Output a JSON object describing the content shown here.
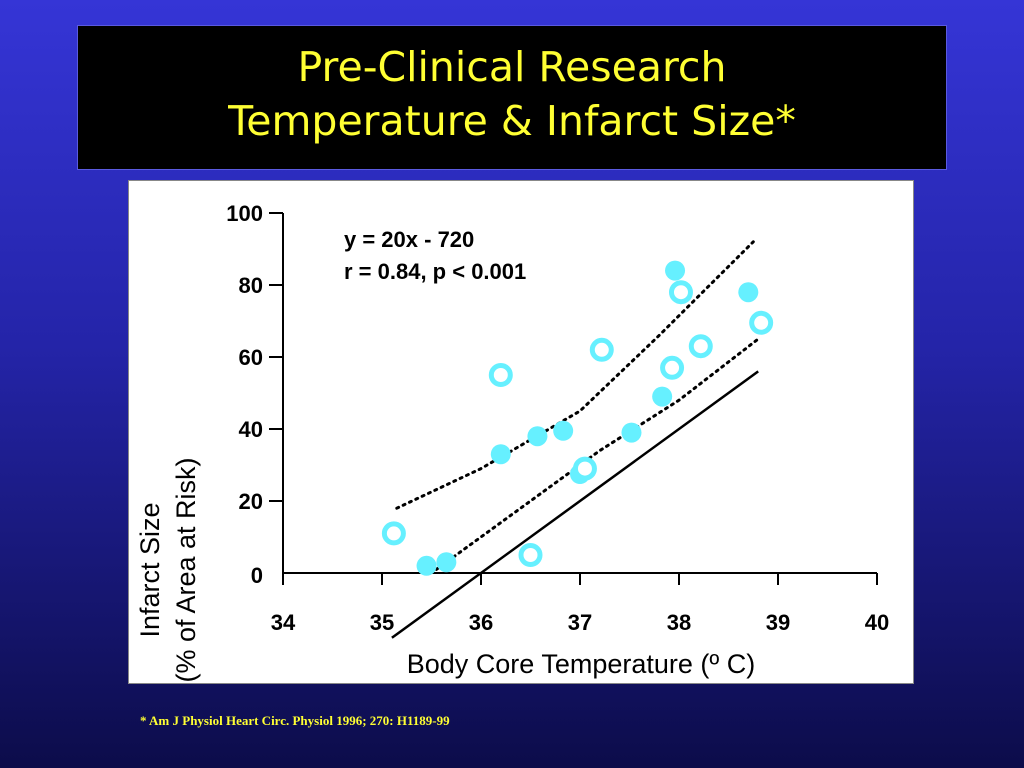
{
  "title": {
    "line1": "Pre-Clinical Research",
    "line2": "Temperature & Infarct Size*"
  },
  "footnote": "* Am J Physiol Heart Circ. Physiol 1996; 270: H1189-99",
  "colors": {
    "title": "#ffff33",
    "marker": "#66f0ff",
    "axis": "#000000"
  },
  "chart_data": {
    "type": "scatter",
    "xlabel": "Body Core Temperature (º C)",
    "ylabel_line1": "Infarct Size",
    "ylabel_line2": "(% of Area at Risk)",
    "xlim": [
      34,
      40
    ],
    "ylim": [
      0,
      100
    ],
    "xticks": [
      34,
      35,
      36,
      37,
      38,
      39,
      40
    ],
    "yticks": [
      0,
      20,
      40,
      60,
      80,
      100
    ],
    "annotation_line1": "y = 20x - 720",
    "annotation_line2": "r = 0.84, p < 0.001",
    "regression": {
      "slope": 20,
      "intercept": -720,
      "x_range": [
        35.1,
        38.8
      ]
    },
    "confidence_upper": [
      [
        35.15,
        18
      ],
      [
        36.0,
        29
      ],
      [
        37.0,
        45
      ],
      [
        37.8,
        66
      ],
      [
        38.75,
        92
      ]
    ],
    "confidence_lower": [
      [
        35.55,
        1
      ],
      [
        36.5,
        20
      ],
      [
        37.2,
        34
      ],
      [
        38.0,
        48
      ],
      [
        38.8,
        65
      ]
    ],
    "series": [
      {
        "marker": "filled",
        "points": [
          [
            35.45,
            2
          ],
          [
            35.65,
            3
          ],
          [
            36.2,
            33
          ],
          [
            36.57,
            38
          ],
          [
            36.83,
            39.5
          ],
          [
            37.0,
            27.5
          ],
          [
            37.52,
            39
          ],
          [
            37.83,
            49
          ],
          [
            37.96,
            84
          ],
          [
            38.7,
            78
          ]
        ]
      },
      {
        "marker": "open",
        "points": [
          [
            35.12,
            11
          ],
          [
            36.2,
            55
          ],
          [
            36.5,
            5
          ],
          [
            37.05,
            29
          ],
          [
            37.22,
            62
          ],
          [
            37.93,
            57
          ],
          [
            38.02,
            78
          ],
          [
            38.22,
            63
          ],
          [
            38.83,
            69.5
          ]
        ]
      }
    ]
  }
}
